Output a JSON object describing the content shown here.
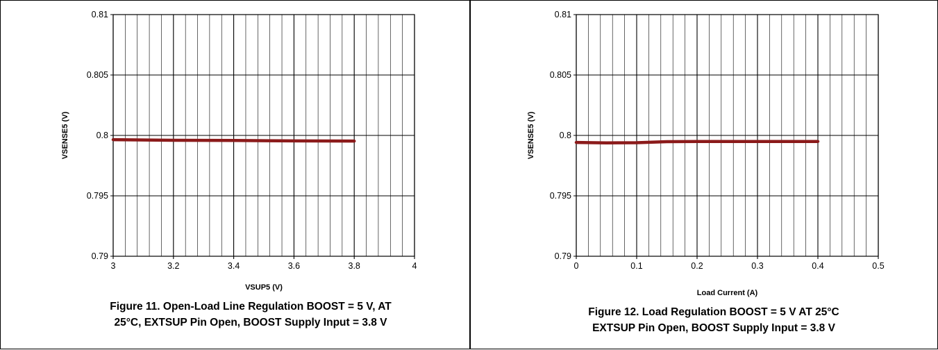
{
  "figures": [
    {
      "caption": "Figure 11. Open-Load Line Regulation BOOST = 5 V, AT 25°C, EXTSUP Pin Open, BOOST Supply Input = 3.8 V",
      "caption_lines": [
        "Figure 11. Open-Load Line Regulation BOOST = 5 V, AT",
        "25°C, EXTSUP Pin Open, BOOST Supply Input = 3.8 V"
      ]
    },
    {
      "caption": "Figure 12. Load Regulation BOOST = 5 V AT 25°C EXTSUP Pin Open, BOOST Supply Input = 3.8 V",
      "caption_lines": [
        "Figure 12. Load Regulation BOOST = 5 V AT 25°C",
        "EXTSUP Pin Open, BOOST Supply Input = 3.8 V"
      ]
    }
  ],
  "chart_data": [
    {
      "type": "line",
      "title": "",
      "xlabel": "VSUP5 (V)",
      "ylabel": "VSENSE5 (V)",
      "xlim": [
        3,
        4
      ],
      "ylim": [
        0.79,
        0.81
      ],
      "xticks": [
        3,
        3.2,
        3.4,
        3.6,
        3.8,
        4
      ],
      "xtick_labels": [
        "3",
        "3.2",
        "3.4",
        "3.6",
        "3.8",
        "4"
      ],
      "yticks": [
        0.79,
        0.795,
        0.8,
        0.805,
        0.81
      ],
      "ytick_labels": [
        "0.79",
        "0.795",
        "0.8",
        "0.805",
        "0.81"
      ],
      "minor_x_step": 0.04,
      "grid": true,
      "series": [
        {
          "x": [
            3.0,
            3.2,
            3.4,
            3.6,
            3.8
          ],
          "y": [
            0.79965,
            0.7996,
            0.79958,
            0.79955,
            0.79953
          ],
          "color": "#8b1a1a"
        }
      ]
    },
    {
      "type": "line",
      "title": "",
      "xlabel": "Load Current (A)",
      "ylabel": "VSENSE5 (V)",
      "xlim": [
        0,
        0.5
      ],
      "ylim": [
        0.79,
        0.81
      ],
      "xticks": [
        0,
        0.1,
        0.2,
        0.3,
        0.4,
        0.5
      ],
      "xtick_labels": [
        "0",
        "0.1",
        "0.2",
        "0.3",
        "0.4",
        "0.5"
      ],
      "yticks": [
        0.79,
        0.795,
        0.8,
        0.805,
        0.81
      ],
      "ytick_labels": [
        "0.79",
        "0.795",
        "0.8",
        "0.805",
        "0.81"
      ],
      "minor_x_step": 0.02,
      "grid": true,
      "series": [
        {
          "x": [
            0,
            0.05,
            0.1,
            0.15,
            0.2,
            0.25,
            0.3,
            0.35,
            0.4
          ],
          "y": [
            0.79942,
            0.79938,
            0.7994,
            0.79948,
            0.7995,
            0.7995,
            0.7995,
            0.7995,
            0.7995
          ],
          "color": "#8b1a1a"
        }
      ]
    }
  ]
}
